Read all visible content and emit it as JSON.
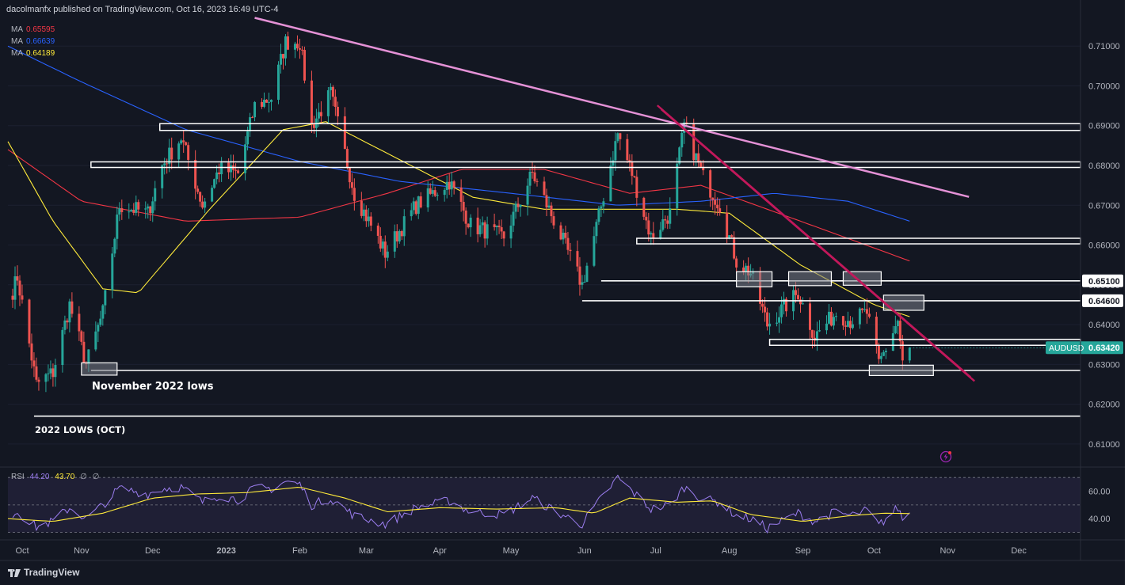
{
  "header": {
    "publisher_line": "dacolmanfx published on TradingView.com, Oct 16, 2023 16:49 UTC-4"
  },
  "ma_legend": [
    {
      "label": "MA",
      "value": "0.65595",
      "color": "#f23645"
    },
    {
      "label": "MA",
      "value": "0.66639",
      "color": "#2962ff"
    },
    {
      "label": "MA",
      "value": "0.64189",
      "color": "#ffeb3b"
    }
  ],
  "rsi_legend": {
    "label": "RSI",
    "value1": "44.20",
    "value2": "43.70",
    "extra1": "∅",
    "extra2": "∅",
    "color1": "#9c7ef0",
    "color2": "#ffeb3b"
  },
  "annotations": {
    "nov_lows": "November 2022 lows",
    "oct_lows": "2022 LOWS (OCT)"
  },
  "footer": {
    "brand": "TradingView",
    "logo_icon": "tradingview-logo-icon"
  },
  "chart_data": {
    "type": "candlestick",
    "symbol": "AUDUSD",
    "last_price": "0.63420",
    "price_ticks": [
      "0.71000",
      "0.70000",
      "0.69000",
      "0.68000",
      "0.67000",
      "0.66000",
      "0.65000",
      "0.64000",
      "0.63000",
      "0.62000",
      "0.61000"
    ],
    "ylim": [
      0.605,
      0.718
    ],
    "highlighted_levels": [
      {
        "price": 0.651,
        "label": "0.65100"
      },
      {
        "price": 0.646,
        "label": "0.64600"
      }
    ],
    "x_ticks": [
      "Oct",
      "Nov",
      "Dec",
      "2023",
      "Feb",
      "Mar",
      "Apr",
      "May",
      "Jun",
      "Jul",
      "Aug",
      "Sep",
      "Oct",
      "Nov",
      "Dec"
    ],
    "anchors": [
      [
        "2022-10-01",
        0.645
      ],
      [
        "2022-10-05",
        0.652
      ],
      [
        "2022-10-13",
        0.625
      ],
      [
        "2022-10-20",
        0.628
      ],
      [
        "2022-10-27",
        0.645
      ],
      [
        "2022-11-03",
        0.63
      ],
      [
        "2022-11-10",
        0.643
      ],
      [
        "2022-11-17",
        0.67
      ],
      [
        "2022-11-29",
        0.668
      ],
      [
        "2022-12-05",
        0.68
      ],
      [
        "2022-12-13",
        0.687
      ],
      [
        "2022-12-22",
        0.67
      ],
      [
        "2022-12-29",
        0.679
      ],
      [
        "2023-01-06",
        0.678
      ],
      [
        "2023-01-13",
        0.695
      ],
      [
        "2023-01-20",
        0.697
      ],
      [
        "2023-01-26",
        0.711
      ],
      [
        "2023-02-01",
        0.711
      ],
      [
        "2023-02-06",
        0.69
      ],
      [
        "2023-02-14",
        0.698
      ],
      [
        "2023-02-24",
        0.673
      ],
      [
        "2023-03-09",
        0.658
      ],
      [
        "2023-03-22",
        0.67
      ],
      [
        "2023-04-05",
        0.676
      ],
      [
        "2023-04-14",
        0.665
      ],
      [
        "2023-04-28",
        0.662
      ],
      [
        "2023-05-10",
        0.678
      ],
      [
        "2023-05-20",
        0.665
      ],
      [
        "2023-05-31",
        0.65
      ],
      [
        "2023-06-05",
        0.662
      ],
      [
        "2023-06-15",
        0.688
      ],
      [
        "2023-06-21",
        0.678
      ],
      [
        "2023-06-29",
        0.662
      ],
      [
        "2023-07-07",
        0.668
      ],
      [
        "2023-07-13",
        0.69
      ],
      [
        "2023-07-21",
        0.677
      ],
      [
        "2023-07-28",
        0.67
      ],
      [
        "2023-08-04",
        0.656
      ],
      [
        "2023-08-10",
        0.653
      ],
      [
        "2023-08-17",
        0.64
      ],
      [
        "2023-08-30",
        0.648
      ],
      [
        "2023-09-06",
        0.637
      ],
      [
        "2023-09-15",
        0.643
      ],
      [
        "2023-09-21",
        0.641
      ],
      [
        "2023-09-28",
        0.643
      ],
      [
        "2023-10-03",
        0.63
      ],
      [
        "2023-10-11",
        0.641
      ],
      [
        "2023-10-13",
        0.63
      ],
      [
        "2023-10-16",
        0.6342
      ]
    ],
    "moving_averages": [
      {
        "value": "0.65595",
        "color": "#f23645",
        "points": [
          [
            "2022-10-01",
            0.684
          ],
          [
            "2022-11-01",
            0.671
          ],
          [
            "2022-12-15",
            0.666
          ],
          [
            "2023-02-01",
            0.667
          ],
          [
            "2023-03-10",
            0.673
          ],
          [
            "2023-04-10",
            0.679
          ],
          [
            "2023-05-15",
            0.679
          ],
          [
            "2023-06-20",
            0.673
          ],
          [
            "2023-07-20",
            0.675
          ],
          [
            "2023-08-31",
            0.666
          ],
          [
            "2023-10-16",
            0.656
          ]
        ]
      },
      {
        "value": "0.66639",
        "color": "#2962ff",
        "points": [
          [
            "2022-10-01",
            0.71
          ],
          [
            "2022-11-01",
            0.701
          ],
          [
            "2022-12-15",
            0.689
          ],
          [
            "2023-02-01",
            0.681
          ],
          [
            "2023-03-15",
            0.676
          ],
          [
            "2023-05-01",
            0.673
          ],
          [
            "2023-06-15",
            0.67
          ],
          [
            "2023-07-20",
            0.671
          ],
          [
            "2023-08-20",
            0.673
          ],
          [
            "2023-09-20",
            0.671
          ],
          [
            "2023-10-16",
            0.666
          ]
        ]
      },
      {
        "value": "0.64189",
        "color": "#ffeb3b",
        "points": [
          [
            "2022-10-01",
            0.686
          ],
          [
            "2022-10-20",
            0.666
          ],
          [
            "2022-11-10",
            0.649
          ],
          [
            "2022-11-25",
            0.648
          ],
          [
            "2022-12-25",
            0.669
          ],
          [
            "2023-01-25",
            0.689
          ],
          [
            "2023-02-12",
            0.691
          ],
          [
            "2023-03-10",
            0.683
          ],
          [
            "2023-04-15",
            0.672
          ],
          [
            "2023-05-15",
            0.669
          ],
          [
            "2023-06-15",
            0.669
          ],
          [
            "2023-07-10",
            0.669
          ],
          [
            "2023-08-01",
            0.668
          ],
          [
            "2023-08-31",
            0.655
          ],
          [
            "2023-10-01",
            0.645
          ],
          [
            "2023-10-16",
            0.642
          ]
        ]
      }
    ],
    "horizontal_levels": [
      {
        "price_top": 0.6905,
        "price_bottom": 0.6888,
        "start": "2022-12-04"
      },
      {
        "price_top": 0.6809,
        "price_bottom": 0.6795,
        "start": "2022-11-05"
      },
      {
        "price_top": 0.6617,
        "price_bottom": 0.6603,
        "start": "2023-06-23"
      },
      {
        "price_single": 0.651,
        "start": "2023-06-08"
      },
      {
        "price_single": 0.646,
        "start": "2023-05-31"
      },
      {
        "price_top": 0.6363,
        "price_bottom": 0.6348,
        "start": "2023-08-18"
      },
      {
        "price_single": 0.6285,
        "start": "2022-11-05"
      },
      {
        "price_single": 0.617,
        "start": "2022-10-12"
      }
    ],
    "trendlines": [
      {
        "color": "#e491d6",
        "from": [
          "2023-01-13",
          0.7171
        ],
        "to": [
          "2023-11-10",
          0.6721
        ]
      },
      {
        "color": "#c2185b",
        "from": [
          "2023-07-03",
          0.6945
        ],
        "to": [
          "2023-11-12",
          0.6262
        ]
      }
    ],
    "rsi": {
      "ticks": [
        "60.00",
        "40.00"
      ],
      "ylim": [
        28,
        73
      ],
      "band": [
        30,
        70
      ],
      "anchors": [
        [
          "2022-10-01",
          41
        ],
        [
          "2022-10-05",
          45
        ],
        [
          "2022-10-13",
          34
        ],
        [
          "2022-10-20",
          38
        ],
        [
          "2022-10-27",
          48
        ],
        [
          "2022-11-03",
          40
        ],
        [
          "2022-11-10",
          50
        ],
        [
          "2022-11-17",
          62
        ],
        [
          "2022-11-29",
          58
        ],
        [
          "2022-12-05",
          62
        ],
        [
          "2022-12-13",
          63
        ],
        [
          "2022-12-22",
          52
        ],
        [
          "2022-12-29",
          57
        ],
        [
          "2023-01-06",
          54
        ],
        [
          "2023-01-13",
          62
        ],
        [
          "2023-01-20",
          62
        ],
        [
          "2023-01-26",
          67
        ],
        [
          "2023-02-01",
          65
        ],
        [
          "2023-02-06",
          50
        ],
        [
          "2023-02-14",
          55
        ],
        [
          "2023-02-24",
          42
        ],
        [
          "2023-03-09",
          36
        ],
        [
          "2023-03-22",
          48
        ],
        [
          "2023-04-05",
          53
        ],
        [
          "2023-04-14",
          45
        ],
        [
          "2023-04-28",
          43
        ],
        [
          "2023-05-10",
          55
        ],
        [
          "2023-05-20",
          45
        ],
        [
          "2023-05-31",
          36
        ],
        [
          "2023-06-05",
          48
        ],
        [
          "2023-06-15",
          70
        ],
        [
          "2023-06-21",
          60
        ],
        [
          "2023-06-29",
          47
        ],
        [
          "2023-07-07",
          50
        ],
        [
          "2023-07-13",
          63
        ],
        [
          "2023-07-21",
          54
        ],
        [
          "2023-07-28",
          52
        ],
        [
          "2023-08-04",
          42
        ],
        [
          "2023-08-10",
          40
        ],
        [
          "2023-08-17",
          33
        ],
        [
          "2023-08-30",
          44
        ],
        [
          "2023-09-06",
          38
        ],
        [
          "2023-09-15",
          45
        ],
        [
          "2023-09-21",
          42
        ],
        [
          "2023-09-28",
          46
        ],
        [
          "2023-10-03",
          35
        ],
        [
          "2023-10-11",
          48
        ],
        [
          "2023-10-13",
          40
        ],
        [
          "2023-10-16",
          44.2
        ]
      ],
      "ma_anchors": [
        [
          "2022-10-01",
          40
        ],
        [
          "2022-10-20",
          38
        ],
        [
          "2022-11-10",
          44
        ],
        [
          "2022-12-01",
          55
        ],
        [
          "2022-12-20",
          58
        ],
        [
          "2023-01-10",
          59
        ],
        [
          "2023-02-01",
          63
        ],
        [
          "2023-02-20",
          55
        ],
        [
          "2023-03-10",
          45
        ],
        [
          "2023-04-01",
          48
        ],
        [
          "2023-04-25",
          47
        ],
        [
          "2023-05-20",
          48
        ],
        [
          "2023-06-05",
          44
        ],
        [
          "2023-06-20",
          55
        ],
        [
          "2023-07-10",
          52
        ],
        [
          "2023-07-25",
          53
        ],
        [
          "2023-08-10",
          43
        ],
        [
          "2023-09-01",
          38
        ],
        [
          "2023-09-20",
          42
        ],
        [
          "2023-10-05",
          44
        ],
        [
          "2023-10-16",
          43.7
        ]
      ]
    }
  }
}
